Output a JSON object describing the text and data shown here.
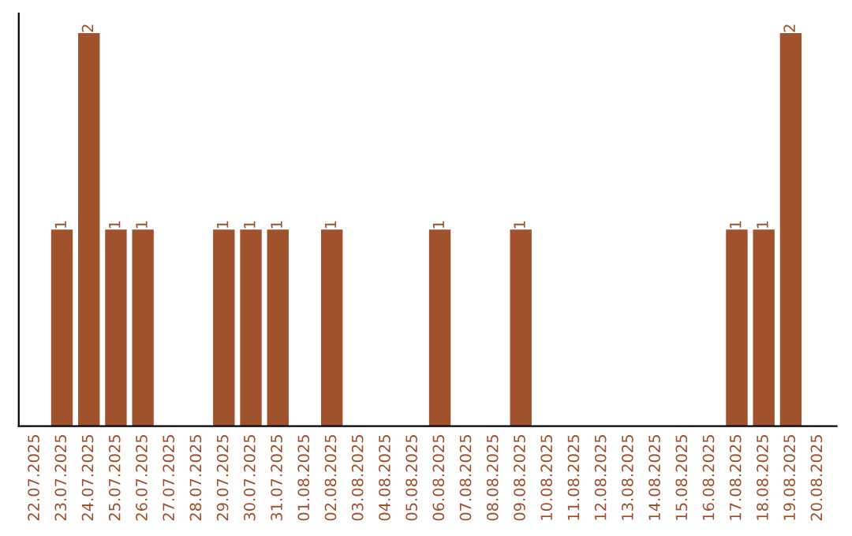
{
  "chart_data": {
    "type": "bar",
    "categories": [
      "22.07.2025",
      "23.07.2025",
      "24.07.2025",
      "25.07.2025",
      "26.07.2025",
      "27.07.2025",
      "28.07.2025",
      "29.07.2025",
      "30.07.2025",
      "31.07.2025",
      "01.08.2025",
      "02.08.2025",
      "03.08.2025",
      "04.08.2025",
      "05.08.2025",
      "06.08.2025",
      "07.08.2025",
      "08.08.2025",
      "09.08.2025",
      "10.08.2025",
      "11.08.2025",
      "12.08.2025",
      "13.08.2025",
      "14.08.2025",
      "15.08.2025",
      "16.08.2025",
      "17.08.2025",
      "18.08.2025",
      "19.08.2025",
      "20.08.2025"
    ],
    "values": [
      0,
      1,
      2,
      1,
      1,
      0,
      0,
      1,
      1,
      1,
      0,
      1,
      0,
      0,
      0,
      1,
      0,
      0,
      1,
      0,
      0,
      0,
      0,
      0,
      0,
      0,
      1,
      1,
      2,
      0
    ],
    "value_labels": [
      null,
      "1",
      "2",
      "1",
      "1",
      null,
      null,
      "1",
      "1",
      "1",
      null,
      "1",
      null,
      null,
      null,
      "1",
      null,
      null,
      "1",
      null,
      null,
      null,
      null,
      null,
      null,
      null,
      "1",
      "1",
      "2",
      null
    ],
    "color": "#a0522d",
    "tick_labels": "x",
    "grid": false,
    "legend": false
  }
}
